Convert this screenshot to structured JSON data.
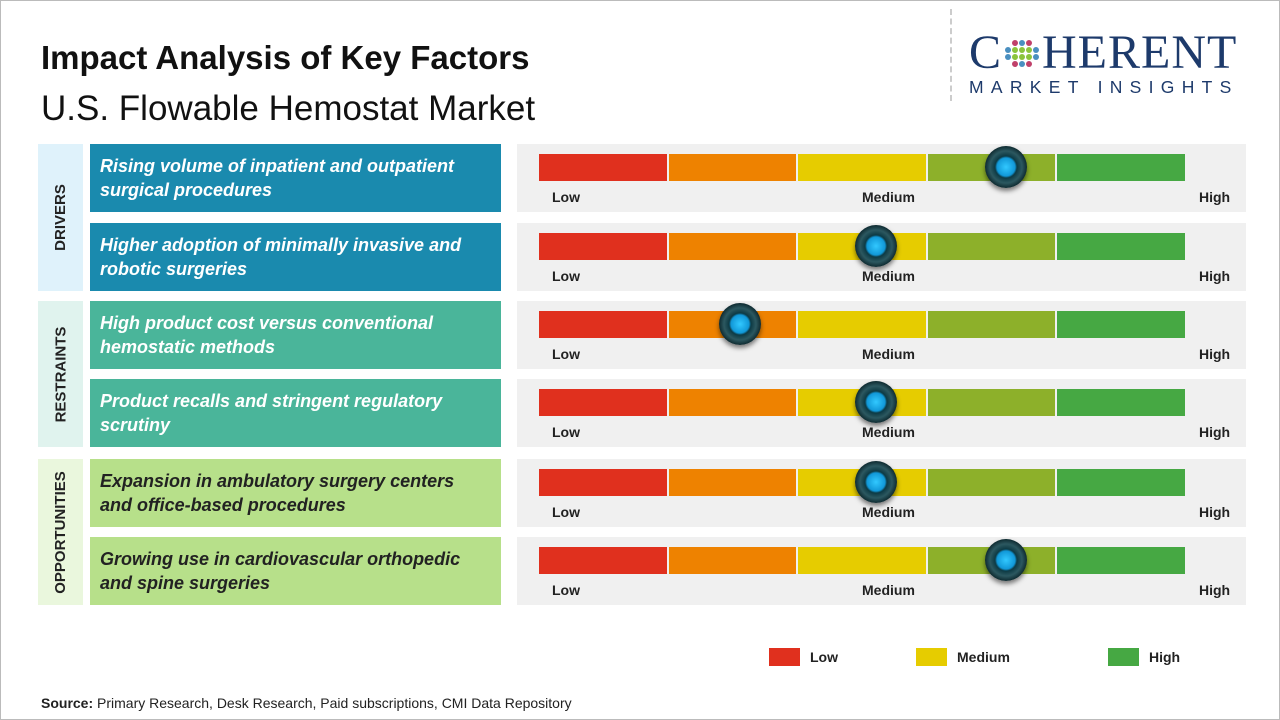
{
  "header": {
    "title": "Impact Analysis of Key Factors",
    "subtitle": "U.S. Flowable Hemostat Market"
  },
  "logo": {
    "text_top": "COHERENT",
    "text_bottom": "MARKET INSIGHTS"
  },
  "colors": {
    "low": "#e0301e",
    "low_medium": "#ee8200",
    "medium": "#e6cc00",
    "medium_high": "#8db02a",
    "high": "#46a843",
    "drivers": "#1a8aae",
    "restraints": "#4ab59a",
    "opportunities": "#b7e08a"
  },
  "chart_data": {
    "type": "gauge",
    "scale_labels": [
      "Low",
      "Medium",
      "High"
    ],
    "scale_range": [
      0,
      1
    ],
    "categories": [
      {
        "name": "DRIVERS",
        "factors": [
          {
            "label": "Rising volume of inpatient and outpatient surgical procedures",
            "value": 0.72
          },
          {
            "label": "Higher adoption of minimally invasive and robotic surgeries",
            "value": 0.52
          }
        ]
      },
      {
        "name": "RESTRAINTS",
        "factors": [
          {
            "label": "High product cost versus conventional hemostatic methods",
            "value": 0.31
          },
          {
            "label": "Product recalls and stringent regulatory scrutiny",
            "value": 0.52
          }
        ]
      },
      {
        "name": "OPPORTUNITIES",
        "factors": [
          {
            "label": "Expansion in ambulatory surgery centers and office-based procedures",
            "value": 0.52
          },
          {
            "label": "Growing use in cardiovascular orthopedic and spine surgeries",
            "value": 0.72
          }
        ]
      }
    ],
    "legend": [
      {
        "label": "Low",
        "color": "#e0301e"
      },
      {
        "label": "Medium",
        "color": "#e6cc00"
      },
      {
        "label": "High",
        "color": "#46a843"
      }
    ]
  },
  "source": {
    "label": "Source:",
    "text": " Primary Research, Desk Research, Paid subscriptions, CMI Data Repository"
  }
}
